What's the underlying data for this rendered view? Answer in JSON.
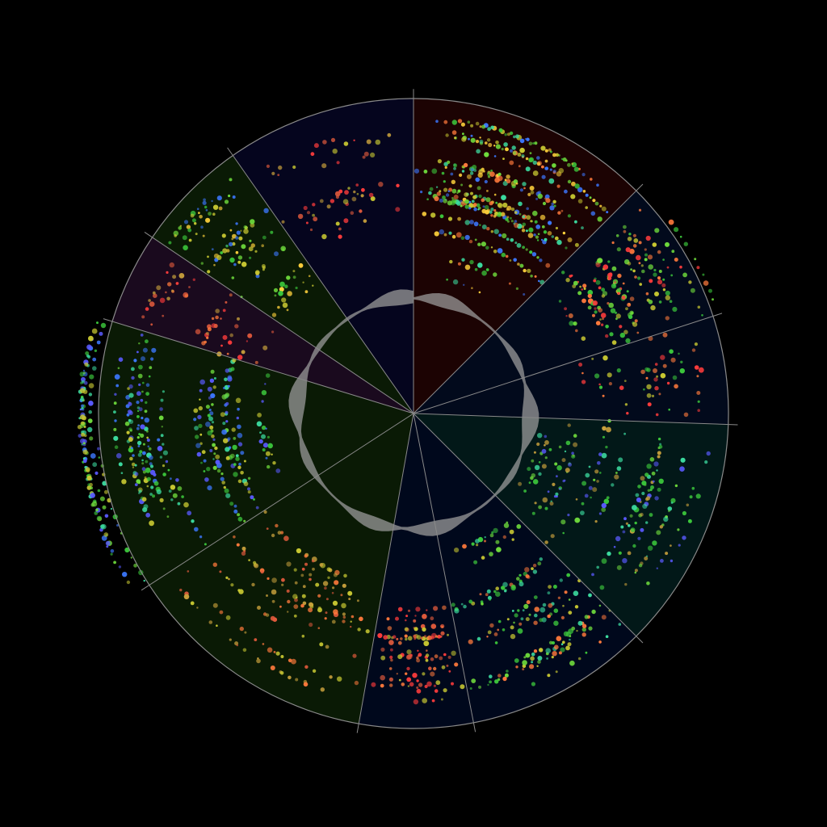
{
  "chart_data": {
    "type": "radial-scatter",
    "title": "",
    "background": "#000000",
    "outline_color": "#8a8a8a",
    "radial_range": [
      0,
      1
    ],
    "inner_ring": {
      "radius_value": 0.365,
      "fill": "#9a9a9a"
    },
    "sectors": [
      {
        "start_deg": 0,
        "end_deg": 45,
        "fill": "#1c0303",
        "density": 0.95,
        "r_range": [
          0.42,
          0.98
        ],
        "palette": [
          "#3cc83c",
          "#6fdc3c",
          "#c8c832",
          "#ff7a3c",
          "#3c78ff",
          "#3cdca0",
          "#ffd23c"
        ]
      },
      {
        "start_deg": 45,
        "end_deg": 72,
        "fill": "#020a1c",
        "density": 0.8,
        "r_range": [
          0.55,
          1.02
        ],
        "palette": [
          "#6fdc3c",
          "#c8c832",
          "#ff7a3c",
          "#ff3c3c",
          "#3cc83c"
        ]
      },
      {
        "start_deg": 72,
        "end_deg": 92,
        "fill": "#020a1c",
        "density": 0.5,
        "r_range": [
          0.55,
          0.98
        ],
        "palette": [
          "#c8c832",
          "#ff7a3c",
          "#3cc83c",
          "#ff3c3c"
        ]
      },
      {
        "start_deg": 92,
        "end_deg": 135,
        "fill": "#021818",
        "density": 0.7,
        "r_range": [
          0.4,
          0.96
        ],
        "palette": [
          "#3cc83c",
          "#5a5aff",
          "#3cdca0",
          "#6fdc3c",
          "#c8a03c"
        ]
      },
      {
        "start_deg": 135,
        "end_deg": 169,
        "fill": "#00081c",
        "density": 0.75,
        "r_range": [
          0.45,
          0.94
        ],
        "palette": [
          "#3cc83c",
          "#6fdc3c",
          "#3cdca0",
          "#c8c832",
          "#ff7a3c"
        ]
      },
      {
        "start_deg": 169,
        "end_deg": 190,
        "fill": "#00081c",
        "density": 0.8,
        "r_range": [
          0.62,
          0.92
        ],
        "palette": [
          "#ff3c3c",
          "#ff7a3c",
          "#c8c832",
          "#e05a3c"
        ]
      },
      {
        "start_deg": 190,
        "end_deg": 237,
        "fill": "#0a1a05",
        "density": 0.55,
        "r_range": [
          0.55,
          0.96
        ],
        "palette": [
          "#c8a03c",
          "#ff7a3c",
          "#e05a3c",
          "#c8c832"
        ]
      },
      {
        "start_deg": 237,
        "end_deg": 287,
        "fill": "#0a1a05",
        "density": 0.95,
        "r_range": [
          0.46,
          1.06
        ],
        "palette": [
          "#5a5aff",
          "#3c78ff",
          "#3cdca0",
          "#6fdc3c",
          "#c8c832",
          "#3cc83c"
        ]
      },
      {
        "start_deg": 287,
        "end_deg": 304,
        "fill": "#1a0a1e",
        "density": 0.55,
        "r_range": [
          0.5,
          0.92
        ],
        "palette": [
          "#ff3c3c",
          "#c8a03c",
          "#e05a3c",
          "#ff7a3c"
        ]
      },
      {
        "start_deg": 304,
        "end_deg": 325,
        "fill": "#0a1a05",
        "density": 0.7,
        "r_range": [
          0.5,
          0.98
        ],
        "palette": [
          "#3cc83c",
          "#c8c832",
          "#6fdc3c",
          "#3c78ff",
          "#ffd23c"
        ]
      },
      {
        "start_deg": 325,
        "end_deg": 360,
        "fill": "#05051e",
        "density": 0.35,
        "r_range": [
          0.6,
          0.92
        ],
        "palette": [
          "#ff3c3c",
          "#c8a03c",
          "#e05a3c",
          "#c8c832"
        ]
      }
    ]
  }
}
